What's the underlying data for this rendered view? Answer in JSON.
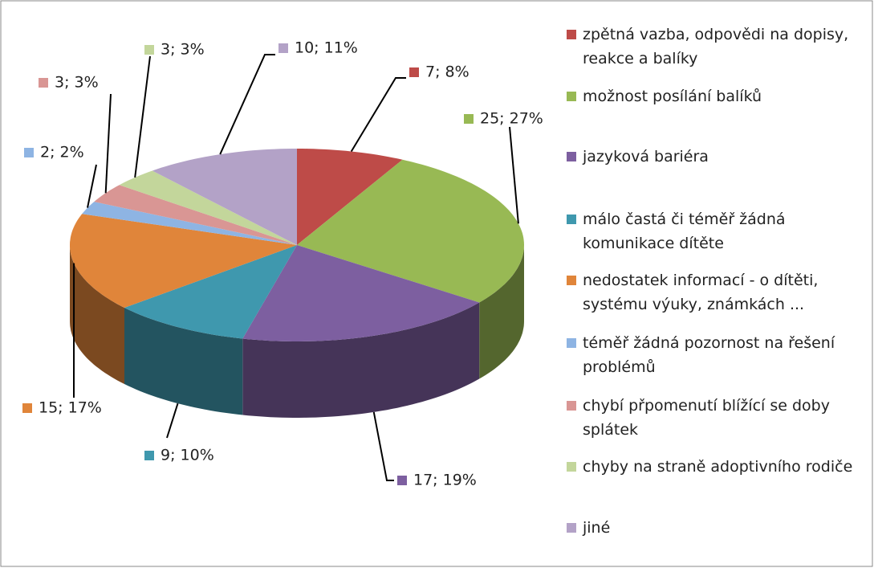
{
  "chart_data": {
    "type": "pie",
    "categories": [
      "zpětná vazba, odpovědi na dopisy, reakce a balíky",
      "možnost posílání balíků",
      "jazyková bariéra",
      "málo častá či téměř žádná komunikace dítěte",
      "nedostatek informací - o dítěti, systému výuky, známkách ...",
      "téměř žádná pozornost na řešení problémů",
      "chybí přpomenutí blížící se doby splátek",
      "chyby na straně adoptivního rodiče",
      "jiné"
    ],
    "values": [
      7,
      25,
      17,
      9,
      15,
      2,
      3,
      3,
      10
    ],
    "value_labels": [
      "7; 8%",
      "25; 27%",
      "17; 19%",
      "9; 10%",
      "15; 17%",
      "2; 2%",
      "3; 3%",
      "3; 3%",
      "10; 11%"
    ],
    "colors": [
      "#be4b48",
      "#98b954",
      "#7d5fa0",
      "#3f98ae",
      "#e0853a",
      "#8eb4e3",
      "#d99694",
      "#c3d69b",
      "#b3a2c7"
    ],
    "legend": "right"
  }
}
